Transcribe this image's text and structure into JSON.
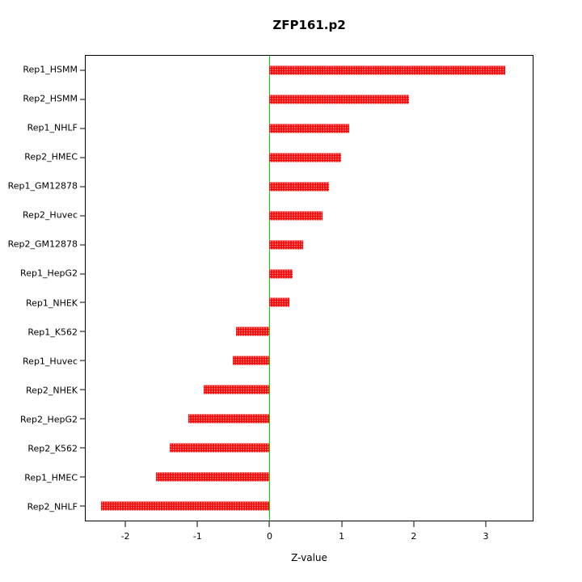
{
  "chart_data": {
    "type": "bar",
    "orientation": "horizontal",
    "title": "ZFP161.p2",
    "xlabel": "Z-value",
    "categories": [
      "Rep1_HSMM",
      "Rep2_HSMM",
      "Rep1_NHLF",
      "Rep2_HMEC",
      "Rep1_GM12878",
      "Rep2_Huvec",
      "Rep2_GM12878",
      "Rep1_HepG2",
      "Rep1_NHEK",
      "Rep1_K562",
      "Rep1_Huvec",
      "Rep2_NHEK",
      "Rep2_HepG2",
      "Rep2_K562",
      "Rep1_HMEC",
      "Rep2_NHLF"
    ],
    "values": [
      3.27,
      1.94,
      1.1,
      0.99,
      0.82,
      0.74,
      0.47,
      0.32,
      0.27,
      -0.47,
      -0.51,
      -0.91,
      -1.13,
      -1.38,
      -1.58,
      -2.34
    ],
    "xlim": [
      -2.55,
      3.65
    ],
    "xticks": [
      -2,
      -1,
      0,
      1,
      2,
      3
    ],
    "bar_color": "#ff0000",
    "zero_line_color": "#00dd00",
    "axis_color": "#000000",
    "background_color": "#ffffff",
    "grid": false,
    "legend": "none"
  }
}
